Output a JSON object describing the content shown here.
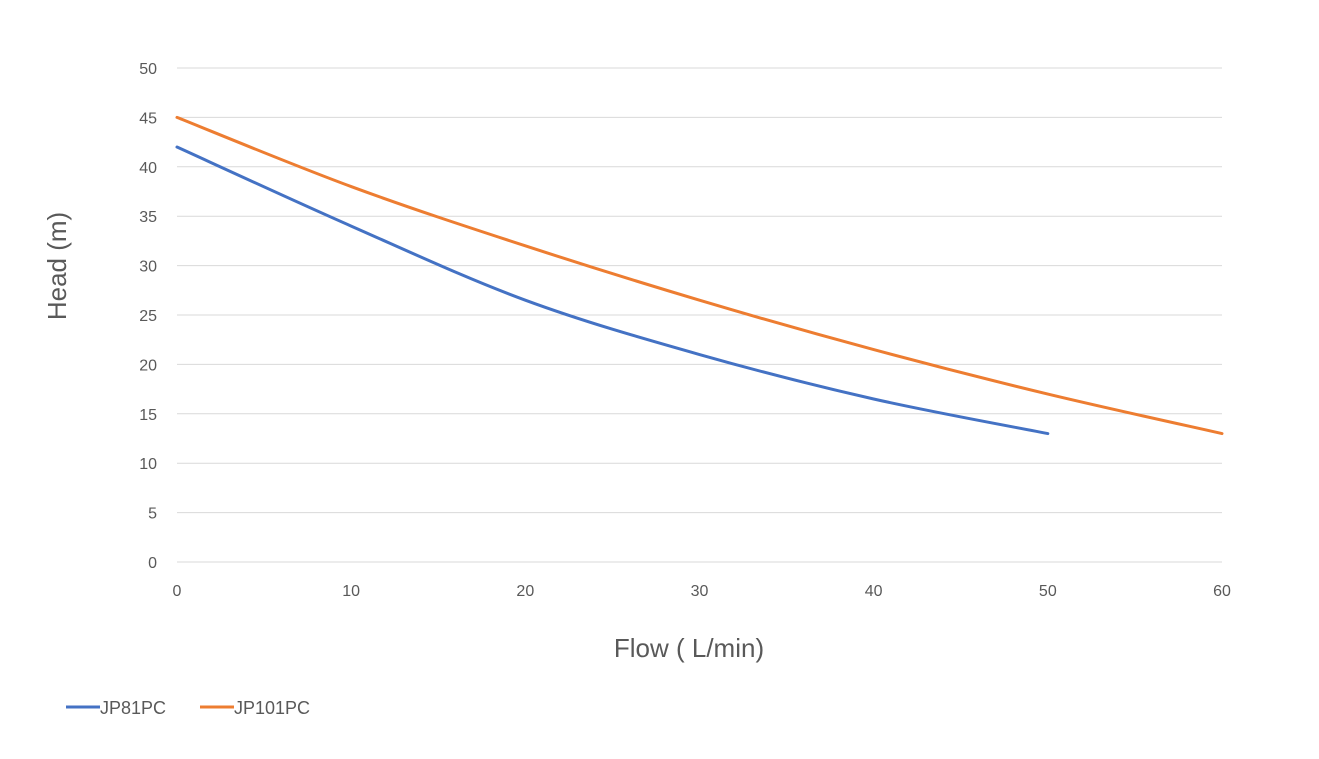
{
  "chart_data": {
    "type": "line",
    "title": "",
    "xlabel": "Flow ( L/min)",
    "ylabel": "Head (m)",
    "xlim": [
      0,
      60
    ],
    "ylim": [
      0,
      50
    ],
    "x_ticks": [
      0,
      10,
      20,
      30,
      40,
      50,
      60
    ],
    "y_ticks": [
      0,
      5,
      10,
      15,
      20,
      25,
      30,
      35,
      40,
      45,
      50
    ],
    "grid": "horizontal",
    "legend_position": "bottom-left",
    "series": [
      {
        "name": "JP81PC",
        "color": "#4472c4",
        "x": [
          0,
          10,
          20,
          30,
          40,
          50
        ],
        "y": [
          42,
          34,
          26.5,
          21,
          16.5,
          13
        ]
      },
      {
        "name": "JP101PC",
        "color": "#ed7d31",
        "x": [
          0,
          10,
          20,
          30,
          40,
          50,
          60
        ],
        "y": [
          45,
          38,
          32,
          26.5,
          21.5,
          17,
          13
        ]
      }
    ]
  }
}
